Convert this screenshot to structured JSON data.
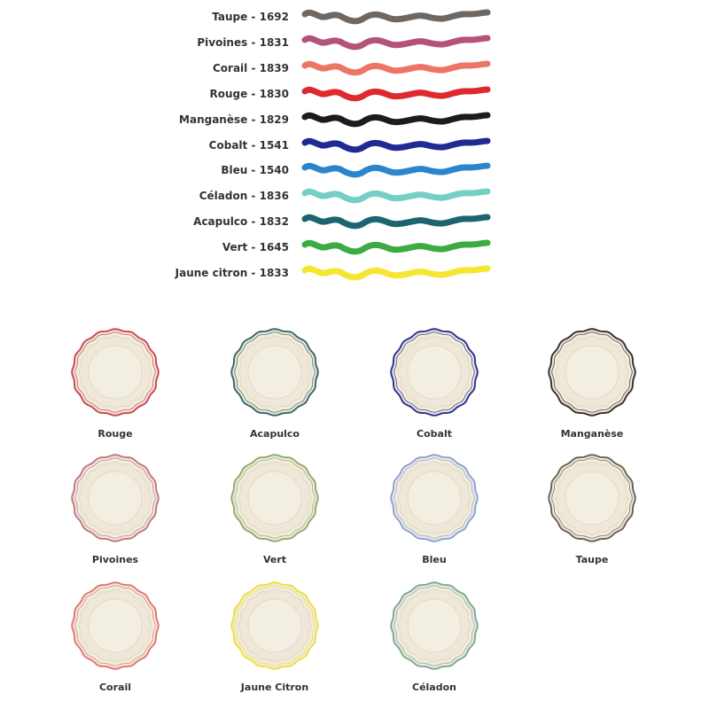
{
  "colors": [
    {
      "label": "Taupe - 1692",
      "color": "#6e6762"
    },
    {
      "label": "Pivoines - 1831",
      "color": "#b5527a"
    },
    {
      "label": "Corail - 1839",
      "color": "#ec7565"
    },
    {
      "label": "Rouge - 1830",
      "color": "#de2a2e"
    },
    {
      "label": "Manganèse - 1829",
      "color": "#1c1c1c"
    },
    {
      "label": "Cobalt - 1541",
      "color": "#1f2a93"
    },
    {
      "label": "Bleu - 1540",
      "color": "#2a85cc"
    },
    {
      "label": "Céladon - 1836",
      "color": "#76cfc4"
    },
    {
      "label": "Acapulco - 1832",
      "color": "#1c6570"
    },
    {
      "label": "Vert - 1645",
      "color": "#3bab42"
    },
    {
      "label": "Jaune citron - 1833",
      "color": "#f6e531"
    }
  ],
  "plates": [
    {
      "label": "Rouge",
      "color": "#c94b55"
    },
    {
      "label": "Acapulco",
      "color": "#3c6a68"
    },
    {
      "label": "Cobalt",
      "color": "#2d3592"
    },
    {
      "label": "Manganèse",
      "color": "#3a3532"
    },
    {
      "label": "Pivoines",
      "color": "#c07a8a"
    },
    {
      "label": "Vert",
      "color": "#93ad6e"
    },
    {
      "label": "Bleu",
      "color": "#8ea3d6"
    },
    {
      "label": "Taupe",
      "color": "#6e655c"
    },
    {
      "label": "Corail",
      "color": "#e07a78"
    },
    {
      "label": "Jaune Citron",
      "color": "#efe040"
    },
    {
      "label": "Céladon",
      "color": "#7fa99a"
    }
  ]
}
